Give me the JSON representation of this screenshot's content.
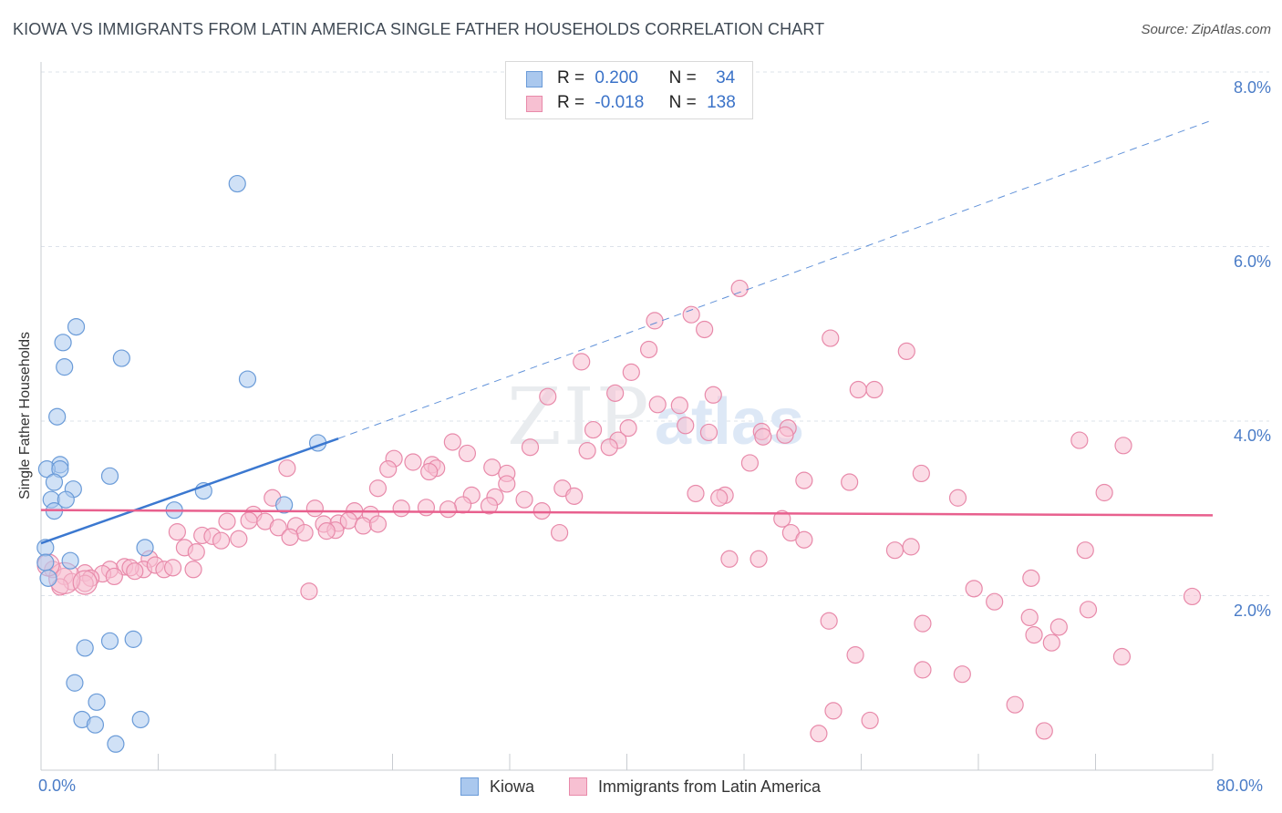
{
  "header": {
    "title": "KIOWA VS IMMIGRANTS FROM LATIN AMERICA SINGLE FATHER HOUSEHOLDS CORRELATION CHART",
    "source": "Source: ZipAtlas.com"
  },
  "stats": {
    "kiowa": {
      "r_label": "R =",
      "r_value": "0.200",
      "n_label": "N =",
      "n_value": "34"
    },
    "latin": {
      "r_label": "R =",
      "r_value": "-0.018",
      "n_label": "N =",
      "n_value": "138"
    }
  },
  "watermark": {
    "zip": "ZIP",
    "atlas": "atlas"
  },
  "colors": {
    "kiowa_fill": "#aac8ee",
    "kiowa_stroke": "#6a9bd8",
    "kiowa_line": "#3b78d0",
    "latin_fill": "#f7c0d2",
    "latin_stroke": "#e88aaa",
    "latin_line": "#e8608e",
    "tick_text": "#4a7cc7",
    "grid": "#dde3ea"
  },
  "chart_data": {
    "type": "scatter",
    "title": "KIOWA VS IMMIGRANTS FROM LATIN AMERICA SINGLE FATHER HOUSEHOLDS CORRELATION CHART",
    "xlabel": "",
    "ylabel": "Single Father Households",
    "xlim": [
      0,
      80
    ],
    "ylim": [
      0,
      8.4
    ],
    "y_ticks": [
      2,
      4,
      6,
      8
    ],
    "y_tick_labels": [
      "2.0%",
      "4.0%",
      "6.0%",
      "8.0%"
    ],
    "x_tick_labels": [
      "0.0%",
      "80.0%"
    ],
    "legend": [
      "Kiowa",
      "Immigrants from Latin America"
    ],
    "series": [
      {
        "name": "Kiowa",
        "r": 0.2,
        "n": 34,
        "trend": {
          "x": [
            0,
            20.3
          ],
          "y": [
            2.6,
            3.8
          ],
          "dashed_to": [
            80,
            7.45
          ]
        },
        "points": [
          [
            13.4,
            6.72
          ],
          [
            2.4,
            5.08
          ],
          [
            1.5,
            4.9
          ],
          [
            5.5,
            4.72
          ],
          [
            1.6,
            4.62
          ],
          [
            14.1,
            4.48
          ],
          [
            1.1,
            4.05
          ],
          [
            18.9,
            3.75
          ],
          [
            1.3,
            3.5
          ],
          [
            0.4,
            3.45
          ],
          [
            1.3,
            3.45
          ],
          [
            4.7,
            3.37
          ],
          [
            0.9,
            3.3
          ],
          [
            2.2,
            3.22
          ],
          [
            11.1,
            3.2
          ],
          [
            0.7,
            3.1
          ],
          [
            1.7,
            3.1
          ],
          [
            0.9,
            2.97
          ],
          [
            9.1,
            2.98
          ],
          [
            16.6,
            3.04
          ],
          [
            0.3,
            2.55
          ],
          [
            7.1,
            2.55
          ],
          [
            2.0,
            2.4
          ],
          [
            0.3,
            2.38
          ],
          [
            0.5,
            2.2
          ],
          [
            3.0,
            1.4
          ],
          [
            4.7,
            1.48
          ],
          [
            6.3,
            1.5
          ],
          [
            2.3,
            1.0
          ],
          [
            3.8,
            0.78
          ],
          [
            2.8,
            0.58
          ],
          [
            3.7,
            0.52
          ],
          [
            6.8,
            0.58
          ],
          [
            5.1,
            0.3
          ]
        ]
      },
      {
        "name": "Immigrants from Latin America",
        "r": -0.018,
        "n": 138,
        "trend": {
          "x": [
            0,
            80
          ],
          "y": [
            2.98,
            2.92
          ]
        },
        "points": [
          [
            47.7,
            5.52
          ],
          [
            44.4,
            5.22
          ],
          [
            41.9,
            5.15
          ],
          [
            45.3,
            5.05
          ],
          [
            53.9,
            4.95
          ],
          [
            41.5,
            4.82
          ],
          [
            59.1,
            4.8
          ],
          [
            36.9,
            4.68
          ],
          [
            40.3,
            4.56
          ],
          [
            55.8,
            4.36
          ],
          [
            56.9,
            4.36
          ],
          [
            34.6,
            4.28
          ],
          [
            39.2,
            4.32
          ],
          [
            45.9,
            4.3
          ],
          [
            42.1,
            4.19
          ],
          [
            43.6,
            4.18
          ],
          [
            40.1,
            3.92
          ],
          [
            44.0,
            3.95
          ],
          [
            37.7,
            3.9
          ],
          [
            51.0,
            3.92
          ],
          [
            45.6,
            3.87
          ],
          [
            49.2,
            3.88
          ],
          [
            49.3,
            3.82
          ],
          [
            50.8,
            3.84
          ],
          [
            28.1,
            3.76
          ],
          [
            39.4,
            3.78
          ],
          [
            38.8,
            3.7
          ],
          [
            37.3,
            3.66
          ],
          [
            33.4,
            3.7
          ],
          [
            70.9,
            3.78
          ],
          [
            73.9,
            3.72
          ],
          [
            29.1,
            3.63
          ],
          [
            24.1,
            3.57
          ],
          [
            25.4,
            3.53
          ],
          [
            26.7,
            3.5
          ],
          [
            27.0,
            3.46
          ],
          [
            30.8,
            3.47
          ],
          [
            26.5,
            3.42
          ],
          [
            31.8,
            3.4
          ],
          [
            23.7,
            3.45
          ],
          [
            16.8,
            3.46
          ],
          [
            48.4,
            3.52
          ],
          [
            60.1,
            3.4
          ],
          [
            31.8,
            3.28
          ],
          [
            23.0,
            3.23
          ],
          [
            35.6,
            3.23
          ],
          [
            52.1,
            3.32
          ],
          [
            55.2,
            3.3
          ],
          [
            29.4,
            3.15
          ],
          [
            31.0,
            3.13
          ],
          [
            36.4,
            3.14
          ],
          [
            44.7,
            3.17
          ],
          [
            46.7,
            3.15
          ],
          [
            46.3,
            3.12
          ],
          [
            62.6,
            3.12
          ],
          [
            72.6,
            3.18
          ],
          [
            15.8,
            3.12
          ],
          [
            24.6,
            3.0
          ],
          [
            26.3,
            3.01
          ],
          [
            28.8,
            3.04
          ],
          [
            30.6,
            3.03
          ],
          [
            33.0,
            3.1
          ],
          [
            34.2,
            2.97
          ],
          [
            27.8,
            2.99
          ],
          [
            18.7,
            3.0
          ],
          [
            21.4,
            2.97
          ],
          [
            22.5,
            2.93
          ],
          [
            14.5,
            2.93
          ],
          [
            12.7,
            2.85
          ],
          [
            14.2,
            2.86
          ],
          [
            15.3,
            2.85
          ],
          [
            19.3,
            2.82
          ],
          [
            20.3,
            2.83
          ],
          [
            21.0,
            2.86
          ],
          [
            22.0,
            2.8
          ],
          [
            23.0,
            2.82
          ],
          [
            16.2,
            2.78
          ],
          [
            17.4,
            2.8
          ],
          [
            18.0,
            2.72
          ],
          [
            20.1,
            2.75
          ],
          [
            35.4,
            2.72
          ],
          [
            50.6,
            2.88
          ],
          [
            51.2,
            2.72
          ],
          [
            52.1,
            2.64
          ],
          [
            9.3,
            2.73
          ],
          [
            11.0,
            2.69
          ],
          [
            11.7,
            2.68
          ],
          [
            12.3,
            2.63
          ],
          [
            13.5,
            2.65
          ],
          [
            17.0,
            2.67
          ],
          [
            19.5,
            2.74
          ],
          [
            9.8,
            2.55
          ],
          [
            10.6,
            2.5
          ],
          [
            58.3,
            2.52
          ],
          [
            59.4,
            2.56
          ],
          [
            71.3,
            2.52
          ],
          [
            47.0,
            2.42
          ],
          [
            49.0,
            2.42
          ],
          [
            7.4,
            2.42
          ],
          [
            5.7,
            2.33
          ],
          [
            7.0,
            2.3
          ],
          [
            7.8,
            2.35
          ],
          [
            8.4,
            2.3
          ],
          [
            9.0,
            2.32
          ],
          [
            10.4,
            2.3
          ],
          [
            4.7,
            2.3
          ],
          [
            6.1,
            2.32
          ],
          [
            6.4,
            2.28
          ],
          [
            3.0,
            2.26
          ],
          [
            4.2,
            2.25
          ],
          [
            5.0,
            2.22
          ],
          [
            3.4,
            2.2
          ],
          [
            0.8,
            2.3
          ],
          [
            1.6,
            2.22
          ],
          [
            2.1,
            2.16
          ],
          [
            3.0,
            2.14
          ],
          [
            1.3,
            2.1
          ],
          [
            18.3,
            2.05
          ],
          [
            63.7,
            2.08
          ],
          [
            67.6,
            2.2
          ],
          [
            71.5,
            1.84
          ],
          [
            65.1,
            1.93
          ],
          [
            78.6,
            1.99
          ],
          [
            67.5,
            1.75
          ],
          [
            53.8,
            1.71
          ],
          [
            60.2,
            1.68
          ],
          [
            67.8,
            1.55
          ],
          [
            69.5,
            1.64
          ],
          [
            69.0,
            1.46
          ],
          [
            55.6,
            1.32
          ],
          [
            73.8,
            1.3
          ],
          [
            60.2,
            1.15
          ],
          [
            62.9,
            1.1
          ],
          [
            66.5,
            0.75
          ],
          [
            54.1,
            0.68
          ],
          [
            56.6,
            0.57
          ],
          [
            53.1,
            0.42
          ],
          [
            68.5,
            0.45
          ]
        ]
      }
    ]
  },
  "legend": {
    "kiowa": "Kiowa",
    "latin": "Immigrants from Latin America"
  }
}
